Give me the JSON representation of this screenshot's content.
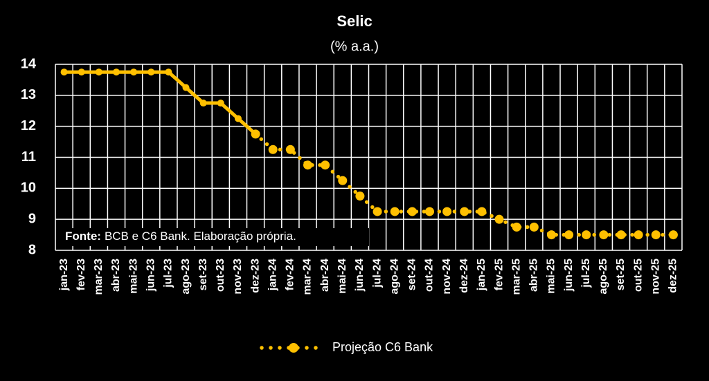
{
  "chart_data": {
    "type": "line",
    "title": "Selic",
    "subtitle": "(% a.a.)",
    "source_label": "Fonte:",
    "source": "BCB e C6 Bank. Elaboração própria.",
    "categories": [
      "jan-23",
      "fev-23",
      "mar-23",
      "abr-23",
      "mai-23",
      "jun-23",
      "jul-23",
      "ago-23",
      "set-23",
      "out-23",
      "nov-23",
      "dez-23",
      "jan-24",
      "fev-24",
      "mar-24",
      "abr-24",
      "mai-24",
      "jun-24",
      "jul-24",
      "ago-24",
      "set-24",
      "out-24",
      "nov-24",
      "dez-24",
      "jan-25",
      "fev-25",
      "mar-25",
      "abr-25",
      "mai-25",
      "jun-25",
      "jul-25",
      "ago-25",
      "set-25",
      "out-25",
      "nov-25",
      "dez-25"
    ],
    "series": [
      {
        "color": "#ffc000",
        "style": "solid",
        "values": [
          13.75,
          13.75,
          13.75,
          13.75,
          13.75,
          13.75,
          13.75,
          13.25,
          12.75,
          12.75,
          12.25,
          11.75,
          null,
          null,
          null,
          null,
          null,
          null,
          null,
          null,
          null,
          null,
          null,
          null,
          null,
          null,
          null,
          null,
          null,
          null,
          null,
          null,
          null,
          null,
          null,
          null
        ]
      },
      {
        "name": "Projeção C6 Bank",
        "color": "#ffc000",
        "style": "dotted",
        "values": [
          null,
          null,
          null,
          null,
          null,
          null,
          null,
          null,
          null,
          null,
          null,
          11.75,
          11.25,
          11.25,
          10.75,
          10.75,
          10.25,
          9.75,
          9.25,
          9.25,
          9.25,
          9.25,
          9.25,
          9.25,
          9.25,
          9.0,
          8.75,
          8.75,
          8.5,
          8.5,
          8.5,
          8.5,
          8.5,
          8.5,
          8.5,
          8.5
        ]
      }
    ],
    "ylim": [
      8,
      14
    ],
    "yticks": [
      8,
      9,
      10,
      11,
      12,
      13,
      14
    ],
    "grid": true
  }
}
